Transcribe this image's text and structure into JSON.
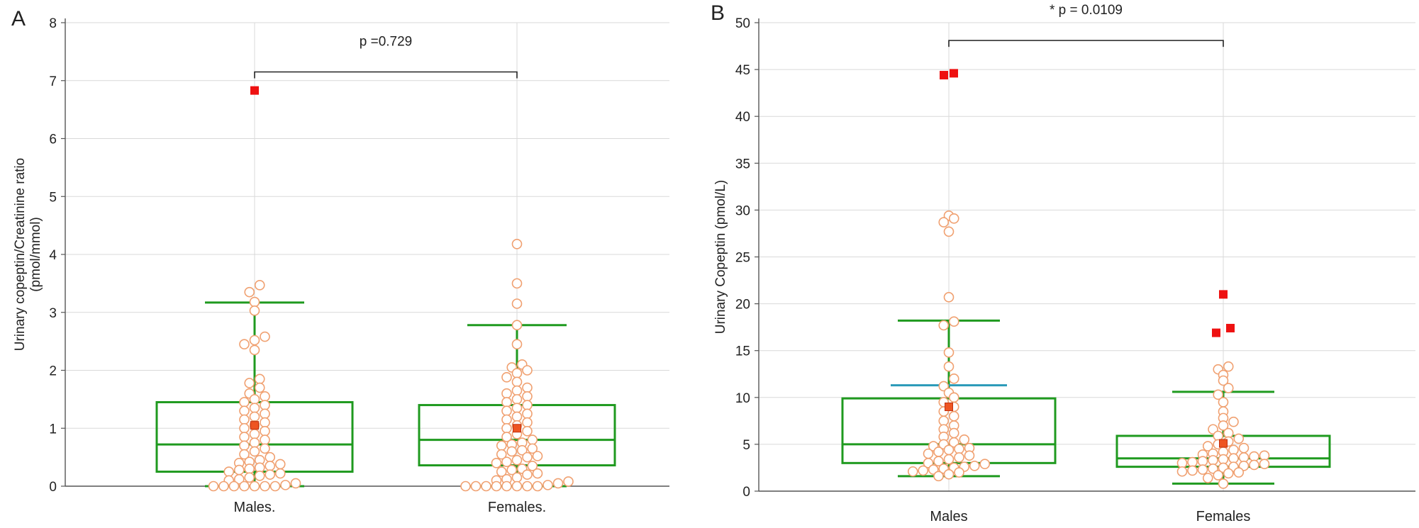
{
  "figure": {
    "panels": [
      {
        "letter": "A",
        "ylabel_lines": [
          "Urinary copeptin/Creatinine ratio",
          "(pmol/mmol)"
        ],
        "significance": "p =0.729",
        "box_color": "#1f9a1f",
        "point_color": "#f0a070",
        "outlier_color": "#ee1111",
        "mean_color": "#ee5522"
      },
      {
        "letter": "B",
        "ylabel_lines": [
          "Urinary Copeptin (pmol/L)"
        ],
        "significance": "* p = 0.0109",
        "box_color": "#1f9a1f",
        "point_color": "#f0a070",
        "outlier_color": "#ee1111",
        "mean_color": "#ee5522",
        "ci_color": "#2a9ab8"
      }
    ]
  },
  "chart_data": [
    {
      "type": "box",
      "title": "A",
      "xlabel": "",
      "ylabel": "Urinary copeptin/Creatinine ratio (pmol/mmol)",
      "ylim": [
        0,
        8
      ],
      "yticks": [
        0,
        1,
        2,
        3,
        4,
        5,
        6,
        7,
        8
      ],
      "grid": true,
      "comparison": {
        "groups": [
          "Males.",
          "Females."
        ],
        "label": "p =0.729",
        "y": 7.15
      },
      "groups": [
        {
          "name": "Males.",
          "whisker_low": 0.0,
          "q1": 0.25,
          "median": 0.72,
          "q3": 1.45,
          "whisker_high": 3.17,
          "mean": 1.05,
          "outliers": [
            6.83
          ],
          "points": [
            0.0,
            0.0,
            0.0,
            0.0,
            0.0,
            0.0,
            0.0,
            0.02,
            0.05,
            0.1,
            0.12,
            0.15,
            0.18,
            0.2,
            0.22,
            0.25,
            0.28,
            0.3,
            0.32,
            0.35,
            0.38,
            0.4,
            0.42,
            0.45,
            0.5,
            0.55,
            0.6,
            0.65,
            0.7,
            0.75,
            0.8,
            0.85,
            0.9,
            0.95,
            1.0,
            1.05,
            1.1,
            1.15,
            1.2,
            1.25,
            1.3,
            1.35,
            1.4,
            1.45,
            1.5,
            1.55,
            1.6,
            1.7,
            1.78,
            1.85,
            2.35,
            2.45,
            2.52,
            2.58,
            3.03,
            3.18,
            3.35,
            3.47
          ]
        },
        {
          "name": "Females.",
          "whisker_low": 0.0,
          "q1": 0.36,
          "median": 0.8,
          "q3": 1.4,
          "whisker_high": 2.78,
          "mean": 1.0,
          "outliers": [],
          "points": [
            0.0,
            0.0,
            0.0,
            0.0,
            0.0,
            0.0,
            0.0,
            0.0,
            0.02,
            0.05,
            0.08,
            0.1,
            0.12,
            0.15,
            0.2,
            0.22,
            0.25,
            0.28,
            0.3,
            0.35,
            0.4,
            0.42,
            0.45,
            0.5,
            0.52,
            0.55,
            0.6,
            0.62,
            0.65,
            0.7,
            0.72,
            0.75,
            0.8,
            0.85,
            0.9,
            0.95,
            1.0,
            1.05,
            1.1,
            1.15,
            1.2,
            1.25,
            1.3,
            1.35,
            1.4,
            1.45,
            1.5,
            1.55,
            1.6,
            1.65,
            1.7,
            1.8,
            1.88,
            1.95,
            2.0,
            2.05,
            2.1,
            2.45,
            2.78,
            3.15,
            3.5,
            4.18
          ]
        }
      ]
    },
    {
      "type": "box",
      "title": "B",
      "xlabel": "",
      "ylabel": "Urinary Copeptin (pmol/L)",
      "ylim": [
        0,
        50
      ],
      "yticks": [
        0,
        5,
        10,
        15,
        20,
        25,
        30,
        35,
        40,
        45,
        50
      ],
      "grid": true,
      "comparison": {
        "groups": [
          "Males",
          "Females"
        ],
        "label": "* p = 0.0109",
        "y": 48.1
      },
      "groups": [
        {
          "name": "Males",
          "whisker_low": 1.6,
          "q1": 3.0,
          "median": 5.0,
          "q3": 9.9,
          "whisker_high": 18.2,
          "mean": 9.0,
          "ci_high": 11.3,
          "outliers": [
            44.4,
            44.6
          ],
          "points": [
            1.6,
            1.8,
            2.0,
            2.1,
            2.2,
            2.3,
            2.4,
            2.5,
            2.6,
            2.7,
            2.9,
            3.0,
            3.2,
            3.4,
            3.6,
            3.8,
            4.0,
            4.2,
            4.4,
            4.5,
            4.6,
            4.8,
            5.0,
            5.2,
            5.5,
            5.8,
            6.2,
            6.6,
            7.0,
            7.5,
            8.0,
            8.5,
            9.0,
            9.5,
            10.0,
            10.5,
            11.2,
            12.0,
            13.3,
            14.8,
            17.7,
            18.1,
            20.7,
            27.7,
            28.7,
            29.1,
            29.4
          ]
        },
        {
          "name": "Females",
          "whisker_low": 0.8,
          "q1": 2.6,
          "median": 3.5,
          "q3": 5.9,
          "whisker_high": 10.6,
          "mean": 5.1,
          "outliers": [
            16.9,
            17.4,
            21.0
          ],
          "points": [
            0.8,
            1.4,
            1.7,
            1.9,
            2.0,
            2.1,
            2.2,
            2.3,
            2.4,
            2.5,
            2.6,
            2.7,
            2.8,
            2.9,
            3.0,
            3.1,
            3.2,
            3.3,
            3.4,
            3.5,
            3.6,
            3.7,
            3.8,
            3.9,
            4.0,
            4.2,
            4.4,
            4.6,
            4.8,
            5.0,
            5.3,
            5.6,
            5.9,
            6.2,
            6.6,
            7.0,
            7.4,
            7.8,
            8.5,
            9.5,
            10.3,
            11.0,
            11.8,
            12.4,
            13.0,
            13.3
          ]
        }
      ]
    }
  ]
}
